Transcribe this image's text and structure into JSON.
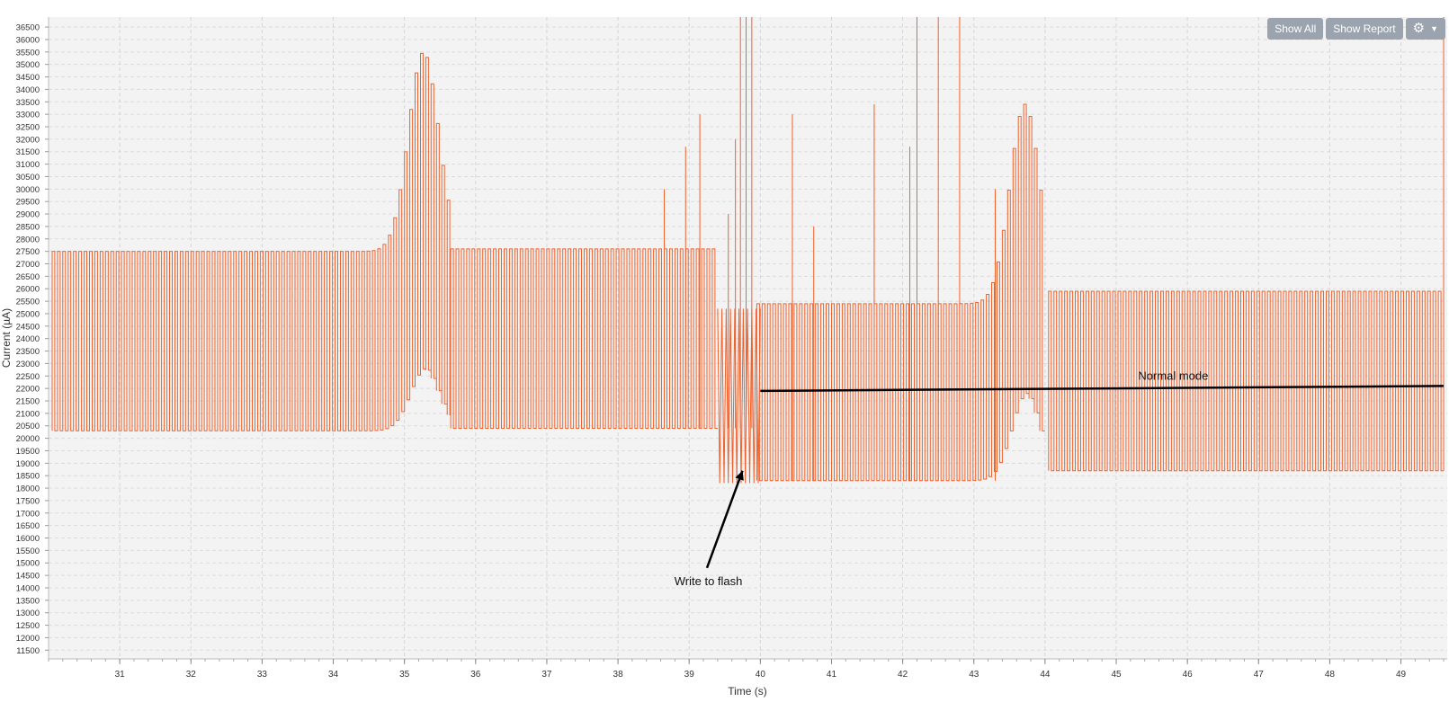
{
  "toolbar": {
    "show_all_label": "Show All",
    "show_report_label": "Show Report",
    "settings_icon": "gear-icon",
    "dropdown_icon": "caret-down-icon",
    "button_color": "#9aa3ae"
  },
  "chart_data": {
    "type": "line",
    "xlabel": "Time (s)",
    "ylabel": "Current (µA)",
    "xlim": [
      30.0,
      49.65
    ],
    "ylim": [
      11150,
      36900
    ],
    "x_ticks": [
      31,
      32,
      33,
      34,
      35,
      36,
      37,
      38,
      39,
      40,
      41,
      42,
      43,
      44,
      45,
      46,
      47,
      48,
      49
    ],
    "y_tick_start": 11500,
    "y_tick_end": 36500,
    "y_tick_step": 500,
    "grid": true,
    "series": [
      {
        "color": "#f0622d",
        "segments": [
          {
            "start": 30.05,
            "end": 35.65,
            "pulse_period": 0.075,
            "low": 20300,
            "high": 27500,
            "high_growth": 8000,
            "low_growth": 2500,
            "growth_center": 35.25,
            "growth_width": 0.3
          },
          {
            "start": 35.65,
            "end": 39.4,
            "pulse_period": 0.075,
            "low": 20400,
            "high": 27600,
            "high_growth": 0,
            "low_growth": 0,
            "growth_center": 39.0,
            "growth_width": 0.3
          },
          {
            "start": 39.95,
            "end": 44.0,
            "pulse_period": 0.075,
            "low": 18300,
            "high": 25400,
            "high_growth": 8000,
            "low_growth": 3500,
            "growth_center": 43.7,
            "growth_width": 0.3
          },
          {
            "start": 44.05,
            "end": 49.6,
            "pulse_period": 0.075,
            "low": 18700,
            "high": 25900,
            "high_growth": 0,
            "low_growth": 0,
            "growth_center": 49.0,
            "growth_width": 0.3
          }
        ],
        "spikes": [
          {
            "x": 38.65,
            "y": 30000
          },
          {
            "x": 38.95,
            "y": 31700
          },
          {
            "x": 39.15,
            "y": 33000
          },
          {
            "x": 39.55,
            "y": 29000
          },
          {
            "x": 39.65,
            "y": 32000
          },
          {
            "x": 39.72,
            "y": 36900
          },
          {
            "x": 39.8,
            "y": 36900
          },
          {
            "x": 39.88,
            "y": 36900
          },
          {
            "x": 40.45,
            "y": 33000
          },
          {
            "x": 40.75,
            "y": 28500
          },
          {
            "x": 41.6,
            "y": 33400
          },
          {
            "x": 42.2,
            "y": 36900
          },
          {
            "x": 42.5,
            "y": 36900
          },
          {
            "x": 42.8,
            "y": 36900
          },
          {
            "x": 42.1,
            "y": 31700
          },
          {
            "x": 43.3,
            "y": 30000
          },
          {
            "x": 49.6,
            "y": 36900
          }
        ],
        "dip_region": {
          "start": 39.4,
          "end": 39.95,
          "low": 18200,
          "high": 25200
        }
      }
    ],
    "annotations": [
      {
        "text": "Write to flash",
        "x": 39.27,
        "y": 14100,
        "arrow_from": [
          39.25,
          14800
        ],
        "arrow_to": [
          39.75,
          18700
        ]
      },
      {
        "text": "Normal mode",
        "x": 45.8,
        "y": 22350,
        "line_from": [
          40.0,
          21900
        ],
        "line_to": [
          49.6,
          22100
        ]
      }
    ]
  }
}
